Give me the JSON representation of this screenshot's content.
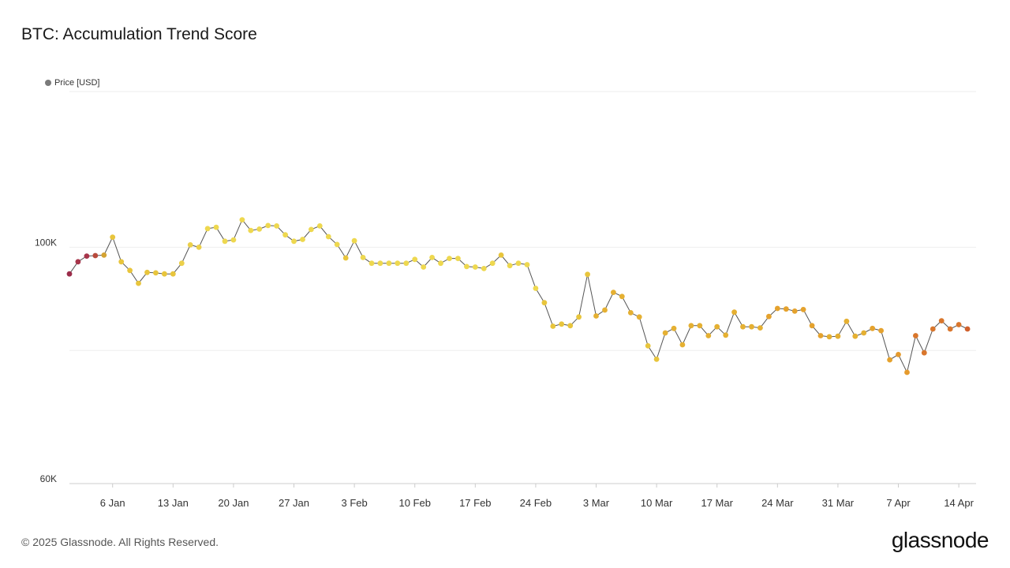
{
  "title": "BTC: Accumulation Trend Score",
  "legend": {
    "label": "Price [USD]",
    "color": "#7a7a7a"
  },
  "footer": "© 2025 Glassnode. All Rights Reserved.",
  "brand": "glassnode",
  "colors": {
    "line": "#555555",
    "grid": "#eeeeee",
    "axis": "#cccccc"
  },
  "chart_data": {
    "type": "line",
    "yscale": "log",
    "ylim": [
      60000,
      140000
    ],
    "ytick_labels": [
      {
        "value": 60000,
        "label": "60K"
      },
      {
        "value": 100000,
        "label": "100K"
      }
    ],
    "xtick_labels": [
      "6 Jan",
      "13 Jan",
      "20 Jan",
      "27 Jan",
      "3 Feb",
      "10 Feb",
      "17 Feb",
      "24 Feb",
      "3 Mar",
      "10 Mar",
      "17 Mar",
      "24 Mar",
      "31 Mar",
      "7 Apr",
      "14 Apr"
    ],
    "xlim": [
      "2025-01-01",
      "2025-04-16"
    ],
    "series": [
      {
        "x": [
          "2025-01-01",
          "2025-01-02",
          "2025-01-03",
          "2025-01-04",
          "2025-01-05",
          "2025-01-06",
          "2025-01-07",
          "2025-01-08",
          "2025-01-09",
          "2025-01-10",
          "2025-01-11",
          "2025-01-12",
          "2025-01-13",
          "2025-01-14",
          "2025-01-15",
          "2025-01-16",
          "2025-01-17",
          "2025-01-18",
          "2025-01-19",
          "2025-01-20",
          "2025-01-21",
          "2025-01-22",
          "2025-01-23",
          "2025-01-24",
          "2025-01-25",
          "2025-01-26",
          "2025-01-27",
          "2025-01-28",
          "2025-01-29",
          "2025-01-30",
          "2025-01-31",
          "2025-02-01",
          "2025-02-02",
          "2025-02-03",
          "2025-02-04",
          "2025-02-05",
          "2025-02-06",
          "2025-02-07",
          "2025-02-08",
          "2025-02-09",
          "2025-02-10",
          "2025-02-11",
          "2025-02-12",
          "2025-02-13",
          "2025-02-14",
          "2025-02-15",
          "2025-02-16",
          "2025-02-17",
          "2025-02-18",
          "2025-02-19",
          "2025-02-20",
          "2025-02-21",
          "2025-02-22",
          "2025-02-23",
          "2025-02-24",
          "2025-02-25",
          "2025-02-26",
          "2025-02-27",
          "2025-02-28",
          "2025-03-01",
          "2025-03-02",
          "2025-03-03",
          "2025-03-04",
          "2025-03-05",
          "2025-03-06",
          "2025-03-07",
          "2025-03-08",
          "2025-03-09",
          "2025-03-10",
          "2025-03-11",
          "2025-03-12",
          "2025-03-13",
          "2025-03-14",
          "2025-03-15",
          "2025-03-16",
          "2025-03-17",
          "2025-03-18",
          "2025-03-19",
          "2025-03-20",
          "2025-03-21",
          "2025-03-22",
          "2025-03-23",
          "2025-03-24",
          "2025-03-25",
          "2025-03-26",
          "2025-03-27",
          "2025-03-28",
          "2025-03-29",
          "2025-03-30",
          "2025-03-31",
          "2025-04-01",
          "2025-04-02",
          "2025-04-03",
          "2025-04-04",
          "2025-04-05",
          "2025-04-06",
          "2025-04-07",
          "2025-04-08",
          "2025-04-09",
          "2025-04-10",
          "2025-04-11",
          "2025-04-12",
          "2025-04-13",
          "2025-04-14",
          "2025-04-15"
        ],
        "values": [
          94400,
          96900,
          98100,
          98200,
          98300,
          102200,
          96900,
          95100,
          92500,
          94700,
          94600,
          94400,
          94400,
          96600,
          100500,
          100000,
          104100,
          104400,
          101300,
          101600,
          106100,
          103700,
          104000,
          104800,
          104700,
          102700,
          101300,
          101700,
          103900,
          104700,
          102300,
          100600,
          97700,
          101400,
          97800,
          96600,
          96600,
          96600,
          96600,
          96600,
          97400,
          95800,
          97800,
          96600,
          97600,
          97600,
          95900,
          95800,
          95500,
          96600,
          98300,
          96100,
          96600,
          96300,
          91500,
          88700,
          84300,
          84700,
          84400,
          86000,
          94300,
          86200,
          87300,
          90700,
          89900,
          86800,
          86000,
          80800,
          78500,
          83100,
          83900,
          81000,
          84400,
          84400,
          82600,
          84200,
          82700,
          86900,
          84200,
          84200,
          84000,
          86100,
          87600,
          87500,
          87100,
          87400,
          84400,
          82600,
          82400,
          82500,
          85200,
          82500,
          83100,
          83900,
          83500,
          78400,
          79300,
          76300,
          82600,
          79600,
          83800,
          85300,
          83800,
          84600,
          83800
        ],
        "point_colors": [
          "#9b2c4a",
          "#a7354a",
          "#a7354a",
          "#b84a3c",
          "#d4a332",
          "#e8c53c",
          "#e8c53c",
          "#e8c53c",
          "#e8c53c",
          "#e8c53c",
          "#e8c53c",
          "#e8c53c",
          "#e8c53c",
          "#ecd04a",
          "#ecd04a",
          "#ecd04a",
          "#eed84f",
          "#eed84f",
          "#eed84f",
          "#eed84f",
          "#eed84f",
          "#eed84f",
          "#eed84f",
          "#eed84f",
          "#eed84f",
          "#eed84f",
          "#eed84f",
          "#eed84f",
          "#eed84f",
          "#eed84f",
          "#eed84f",
          "#eed84f",
          "#e8c53c",
          "#eed84f",
          "#eed84f",
          "#eed84f",
          "#eed84f",
          "#eed84f",
          "#eed84f",
          "#eed84f",
          "#eed84f",
          "#eed84f",
          "#eed84f",
          "#eed84f",
          "#eed84f",
          "#eed84f",
          "#eed84f",
          "#eed84f",
          "#eed84f",
          "#eed84f",
          "#e8c53c",
          "#eed84f",
          "#eed84f",
          "#eed84f",
          "#eed84f",
          "#e8c53c",
          "#e8c53c",
          "#e8c53c",
          "#e8c53c",
          "#e8c53c",
          "#e8c53c",
          "#e5b032",
          "#e5b032",
          "#e5b032",
          "#e5b032",
          "#e5b032",
          "#e5b032",
          "#e8c53c",
          "#e8c53c",
          "#e5b032",
          "#e5b032",
          "#e5b032",
          "#e5b032",
          "#e5b032",
          "#e5b032",
          "#e5b032",
          "#e5b032",
          "#e5b032",
          "#e5b032",
          "#e5b032",
          "#e5b032",
          "#e5a22d",
          "#e5a22d",
          "#e5a22d",
          "#e5a22d",
          "#e5a22d",
          "#e5a22d",
          "#e5a22d",
          "#e5b032",
          "#e5b032",
          "#e5b032",
          "#e5b032",
          "#e5b032",
          "#e5a22d",
          "#e5a22d",
          "#e5a22d",
          "#e59a2d",
          "#e59a2d",
          "#d9762c",
          "#d9762c",
          "#d9762c",
          "#d9762c",
          "#d9762c",
          "#d9762c",
          "#d0602c",
          "#d0602c"
        ]
      }
    ],
    "grid": true,
    "legend_position": "top-left"
  }
}
